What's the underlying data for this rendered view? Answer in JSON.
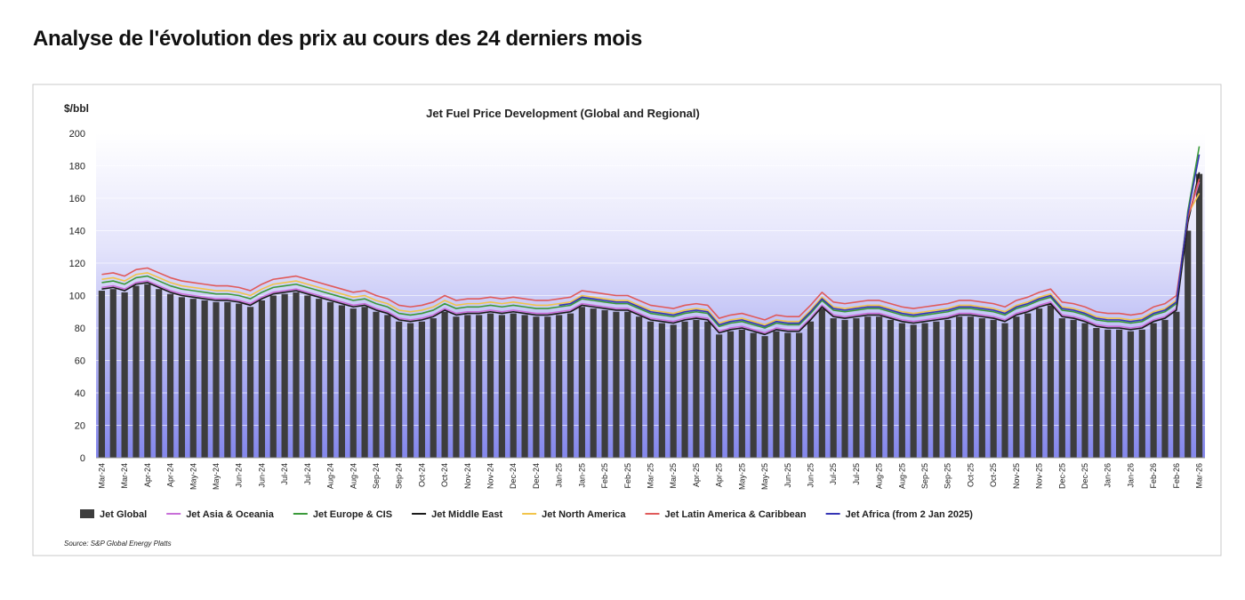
{
  "heading": "Analyse de l'évolution des prix au cours des 24 derniers mois",
  "chart_data": {
    "type": "bar",
    "title": "Jet Fuel Price Development (Global and Regional)",
    "y_label": "$/bbl",
    "source": "Source:  S&P Global Energy Platts",
    "legend": "bottom",
    "grid": true,
    "ylim": [
      0,
      200
    ],
    "yticks": [
      0,
      20,
      40,
      60,
      80,
      100,
      120,
      140,
      160,
      180,
      200
    ],
    "categories": [
      "Mar-24",
      null,
      "Mar-24",
      null,
      "Apr-24",
      null,
      "Apr-24",
      null,
      "May-24",
      null,
      "May-24",
      null,
      "Jun-24",
      null,
      "Jun-24",
      null,
      "Jul-24",
      null,
      "Jul-24",
      null,
      "Aug-24",
      null,
      "Aug-24",
      null,
      "Sep-24",
      null,
      "Sep-24",
      null,
      "Oct-24",
      null,
      "Oct-24",
      null,
      "Nov-24",
      null,
      "Nov-24",
      null,
      "Dec-24",
      null,
      "Dec-24",
      null,
      "Jan-25",
      null,
      "Jan-25",
      null,
      "Feb-25",
      null,
      "Feb-25",
      null,
      "Mar-25",
      null,
      "Mar-25",
      null,
      "Apr-25",
      null,
      "Apr-25",
      null,
      "May-25",
      null,
      "May-25",
      null,
      "Jun-25",
      null,
      "Jun-25",
      null,
      "Jul-25",
      null,
      "Jul-25",
      null,
      "Aug-25",
      null,
      "Aug-25",
      null,
      "Sep-25",
      null,
      "Sep-25",
      null,
      "Oct-25",
      null,
      "Oct-25",
      null,
      "Nov-25",
      null,
      "Nov-25",
      null,
      "Dec-25",
      null,
      "Dec-25",
      null,
      "Jan-26",
      null,
      "Jan-26",
      null,
      "Feb-26",
      null,
      "Feb-26",
      null,
      "Mar-26"
    ],
    "series": [
      {
        "name": "Jet Global",
        "type": "bar",
        "color": "#3d3d3d",
        "values": [
          103,
          104,
          102,
          106,
          107,
          104,
          101,
          99,
          98,
          97,
          96,
          96,
          95,
          93,
          97,
          100,
          101,
          102,
          100,
          98,
          96,
          94,
          92,
          93,
          90,
          88,
          84,
          83,
          84,
          86,
          90,
          87,
          88,
          88,
          89,
          88,
          89,
          88,
          87,
          87,
          88,
          89,
          93,
          92,
          91,
          90,
          90,
          87,
          84,
          83,
          82,
          84,
          85,
          84,
          76,
          78,
          79,
          77,
          75,
          78,
          77,
          77,
          84,
          92,
          86,
          85,
          86,
          87,
          87,
          85,
          83,
          82,
          83,
          84,
          85,
          87,
          87,
          86,
          85,
          83,
          87,
          89,
          92,
          94,
          86,
          85,
          83,
          80,
          79,
          79,
          78,
          79,
          83,
          85,
          90,
          140,
          175
        ]
      },
      {
        "name": "Jet Asia & Oceania",
        "type": "line",
        "color": "#c86fd8",
        "values": [
          105,
          106,
          104,
          108,
          109,
          106,
          103,
          101,
          100,
          99,
          98,
          98,
          97,
          95,
          99,
          102,
          103,
          104,
          102,
          100,
          98,
          96,
          94,
          95,
          92,
          90,
          86,
          85,
          86,
          88,
          92,
          89,
          90,
          90,
          91,
          90,
          91,
          90,
          89,
          89,
          90,
          91,
          95,
          94,
          93,
          92,
          92,
          89,
          86,
          85,
          84,
          86,
          87,
          86,
          78,
          80,
          81,
          79,
          77,
          80,
          79,
          79,
          86,
          94,
          88,
          87,
          88,
          89,
          89,
          87,
          85,
          84,
          85,
          86,
          87,
          89,
          89,
          88,
          87,
          85,
          89,
          91,
          94,
          96,
          88,
          87,
          85,
          82,
          81,
          81,
          80,
          81,
          85,
          87,
          92,
          148,
          170
        ]
      },
      {
        "name": "Jet Europe & CIS",
        "type": "line",
        "color": "#3a9a3a",
        "values": [
          108,
          109,
          107,
          111,
          112,
          109,
          106,
          104,
          103,
          102,
          101,
          101,
          100,
          98,
          102,
          105,
          106,
          107,
          105,
          103,
          101,
          99,
          97,
          98,
          95,
          93,
          89,
          88,
          89,
          91,
          95,
          92,
          93,
          93,
          94,
          93,
          94,
          93,
          92,
          92,
          93,
          94,
          98,
          97,
          96,
          95,
          95,
          92,
          89,
          88,
          87,
          89,
          90,
          89,
          81,
          83,
          84,
          82,
          80,
          83,
          82,
          82,
          89,
          97,
          91,
          90,
          91,
          92,
          92,
          90,
          88,
          87,
          88,
          89,
          90,
          92,
          92,
          91,
          90,
          88,
          92,
          94,
          97,
          99,
          91,
          90,
          88,
          85,
          84,
          84,
          83,
          84,
          88,
          90,
          95,
          152,
          192
        ]
      },
      {
        "name": "Jet Middle East",
        "type": "line",
        "color": "#1a1a1a",
        "values": [
          104,
          105,
          103,
          107,
          108,
          105,
          102,
          100,
          99,
          98,
          97,
          97,
          96,
          94,
          98,
          101,
          102,
          103,
          101,
          99,
          97,
          95,
          93,
          94,
          91,
          89,
          85,
          84,
          85,
          87,
          91,
          88,
          89,
          89,
          90,
          89,
          90,
          89,
          88,
          88,
          89,
          90,
          94,
          93,
          92,
          91,
          91,
          88,
          85,
          84,
          83,
          85,
          86,
          85,
          77,
          79,
          80,
          78,
          76,
          79,
          78,
          78,
          85,
          93,
          87,
          86,
          87,
          88,
          88,
          86,
          84,
          83,
          84,
          85,
          86,
          88,
          88,
          87,
          86,
          84,
          88,
          90,
          93,
          95,
          87,
          86,
          84,
          81,
          80,
          80,
          79,
          80,
          84,
          86,
          91,
          145,
          176
        ]
      },
      {
        "name": "Jet North America",
        "type": "line",
        "color": "#f2c44a",
        "values": [
          110,
          111,
          109,
          113,
          114,
          111,
          108,
          106,
          105,
          104,
          103,
          103,
          102,
          100,
          104,
          107,
          108,
          109,
          107,
          105,
          103,
          101,
          99,
          100,
          97,
          95,
          91,
          90,
          91,
          93,
          97,
          94,
          95,
          95,
          96,
          95,
          96,
          95,
          94,
          94,
          95,
          96,
          100,
          99,
          98,
          97,
          97,
          94,
          91,
          90,
          89,
          91,
          92,
          91,
          83,
          85,
          86,
          84,
          82,
          85,
          84,
          84,
          91,
          99,
          93,
          92,
          93,
          94,
          94,
          92,
          90,
          89,
          90,
          91,
          92,
          94,
          94,
          93,
          92,
          90,
          94,
          96,
          99,
          101,
          93,
          92,
          90,
          87,
          86,
          86,
          85,
          86,
          90,
          92,
          97,
          150,
          163
        ]
      },
      {
        "name": "Jet Latin America & Caribbean",
        "type": "line",
        "color": "#e05a5a",
        "values": [
          113,
          114,
          112,
          116,
          117,
          114,
          111,
          109,
          108,
          107,
          106,
          106,
          105,
          103,
          107,
          110,
          111,
          112,
          110,
          108,
          106,
          104,
          102,
          103,
          100,
          98,
          94,
          93,
          94,
          96,
          100,
          97,
          98,
          98,
          99,
          98,
          99,
          98,
          97,
          97,
          98,
          99,
          103,
          102,
          101,
          100,
          100,
          97,
          94,
          93,
          92,
          94,
          95,
          94,
          86,
          88,
          89,
          87,
          85,
          88,
          87,
          87,
          94,
          102,
          96,
          95,
          96,
          97,
          97,
          95,
          93,
          92,
          93,
          94,
          95,
          97,
          97,
          96,
          95,
          93,
          97,
          99,
          102,
          104,
          96,
          95,
          93,
          90,
          89,
          89,
          88,
          89,
          93,
          95,
          100,
          148,
          172
        ]
      },
      {
        "name": "Jet Africa (from 2 Jan 2025)",
        "type": "line",
        "color": "#3535b5",
        "values": [
          null,
          null,
          null,
          null,
          null,
          null,
          null,
          null,
          null,
          null,
          null,
          null,
          null,
          null,
          null,
          null,
          null,
          null,
          null,
          null,
          null,
          null,
          null,
          null,
          null,
          null,
          null,
          null,
          null,
          null,
          null,
          null,
          null,
          null,
          null,
          null,
          null,
          null,
          null,
          null,
          94,
          95,
          99,
          98,
          97,
          96,
          96,
          93,
          90,
          89,
          88,
          90,
          91,
          90,
          82,
          84,
          85,
          83,
          81,
          84,
          83,
          83,
          90,
          98,
          92,
          91,
          92,
          93,
          93,
          91,
          89,
          88,
          89,
          90,
          91,
          93,
          93,
          92,
          91,
          89,
          93,
          95,
          98,
          100,
          92,
          91,
          89,
          86,
          85,
          85,
          84,
          85,
          89,
          91,
          96,
          150,
          187
        ]
      }
    ]
  }
}
